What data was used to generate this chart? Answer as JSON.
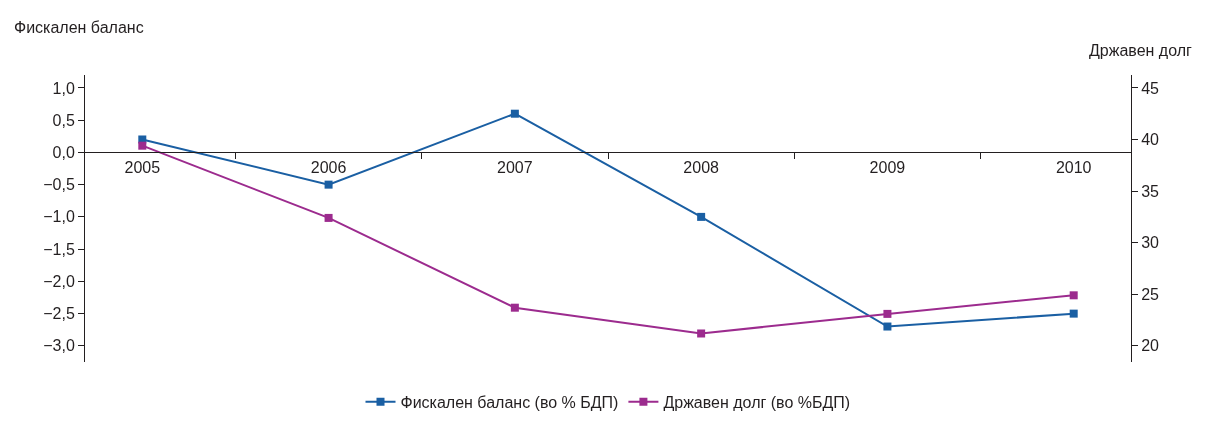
{
  "chart_data": {
    "type": "line",
    "ylabel": "Фискален баланс",
    "y2label": "Државен долг",
    "categories": [
      "2005",
      "2006",
      "2007",
      "2008",
      "2009",
      "2010"
    ],
    "series": [
      {
        "name": "Фискален баланс (во % БДП)",
        "color": "#1a5fa3",
        "values": [
          0.2,
          -0.5,
          0.6,
          -1.0,
          -2.7,
          -2.5
        ]
      },
      {
        "name": "Државен долг (во %БДП)",
        "color": "#9c2b8e",
        "axis": "y2",
        "values": [
          39.4,
          32.4,
          23.7,
          21.2,
          23.1,
          24.9
        ]
      }
    ],
    "ylim": [
      -3.25,
      1.2
    ],
    "yticks": [
      {
        "value": -3,
        "label": "−3,0"
      },
      {
        "value": -2.5,
        "label": "−2,5"
      },
      {
        "value": -2,
        "label": "−2,0"
      },
      {
        "value": -1.5,
        "label": "−1,5"
      },
      {
        "value": -1,
        "label": "−1,0"
      },
      {
        "value": -0.5,
        "label": "−0,5"
      },
      {
        "value": 0,
        "label": "0,0"
      },
      {
        "value": 0.5,
        "label": "0,5"
      },
      {
        "value": 1,
        "label": "1,0"
      }
    ],
    "y2lim": [
      18.4375,
      46.25
    ],
    "y2ticks": [
      20,
      25,
      30,
      35,
      40,
      45
    ],
    "marker": "square",
    "line_style": "solid",
    "grid": false,
    "legend": "bottom"
  }
}
